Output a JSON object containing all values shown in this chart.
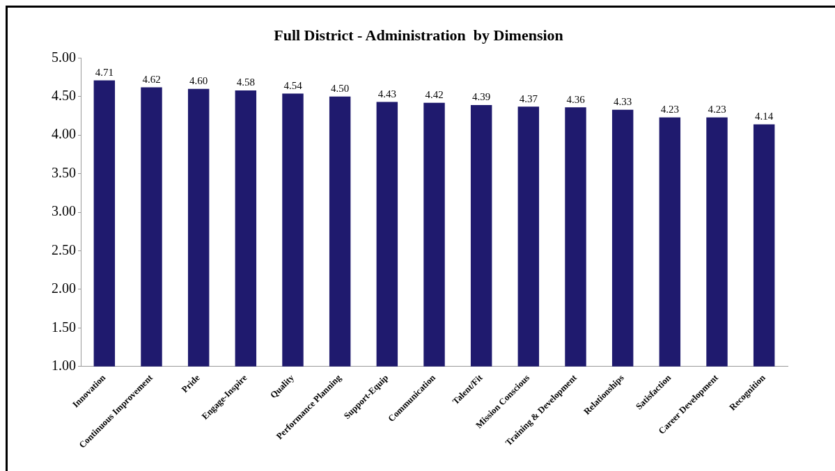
{
  "chart_data": {
    "type": "bar",
    "title": "Full District - Administration  by Dimension",
    "categories": [
      "Innovation",
      "Continuous Improvement",
      "Pride",
      "Engage-Inspire",
      "Quality",
      "Performance Planning",
      "Support-Equip",
      "Communication",
      "Talent/Fit",
      "Mission Conscious",
      "Training & Development",
      "Relationships",
      "Satisfaction",
      "Career Development",
      "Recognition"
    ],
    "values": [
      4.71,
      4.62,
      4.6,
      4.58,
      4.54,
      4.5,
      4.43,
      4.42,
      4.39,
      4.37,
      4.36,
      4.33,
      4.23,
      4.23,
      4.14
    ],
    "value_labels": [
      "4.71",
      "4.62",
      "4.60",
      "4.58",
      "4.54",
      "4.50",
      "4.43",
      "4.42",
      "4.39",
      "4.37",
      "4.36",
      "4.33",
      "4.23",
      "4.23",
      "4.14"
    ],
    "color": "#1f1a6e",
    "ylim": [
      1,
      5
    ],
    "yticks": [
      {
        "value": 1,
        "label": "1.00"
      },
      {
        "value": 1.5,
        "label": "1.50"
      },
      {
        "value": 2,
        "label": "2.00"
      },
      {
        "value": 2.5,
        "label": "2.50"
      },
      {
        "value": 3,
        "label": "3.00"
      },
      {
        "value": 3.5,
        "label": "3.50"
      },
      {
        "value": 4,
        "label": "4.00"
      },
      {
        "value": 4.5,
        "label": "4.50"
      },
      {
        "value": 5,
        "label": "5.00"
      }
    ],
    "grid": false,
    "legend": false
  }
}
